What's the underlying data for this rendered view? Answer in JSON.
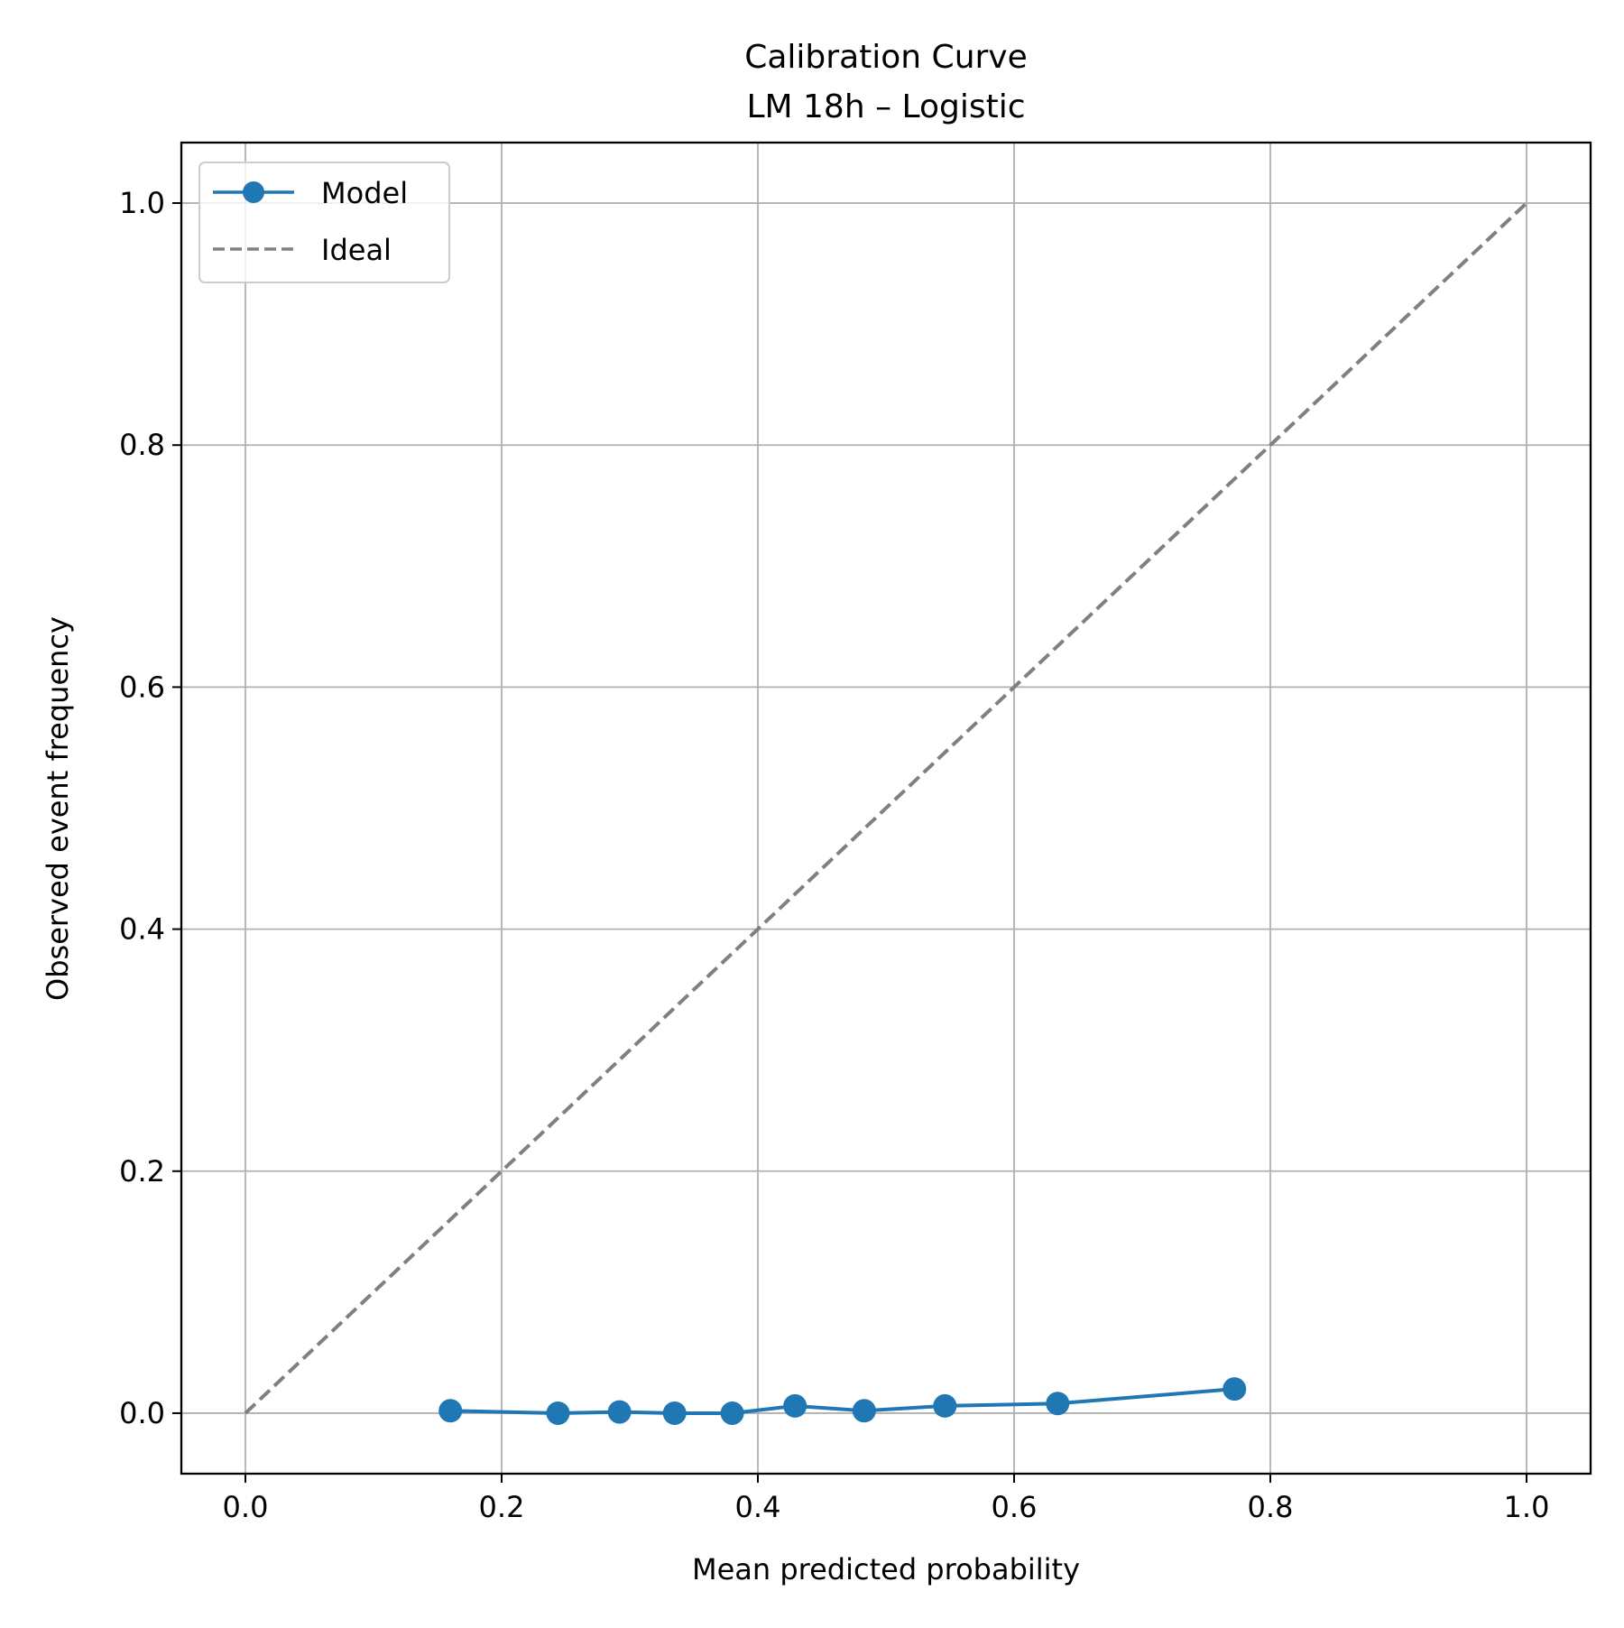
{
  "chart_data": {
    "type": "line",
    "title": "Calibration Curve",
    "subtitle": "LM 18h – Logistic",
    "xlabel": "Mean predicted probability",
    "ylabel": "Observed event frequency",
    "xlim": [
      -0.05,
      1.05
    ],
    "ylim": [
      -0.05,
      1.05
    ],
    "xticks": [
      0.0,
      0.2,
      0.4,
      0.6,
      0.8,
      1.0
    ],
    "xtick_labels": [
      "0.0",
      "0.2",
      "0.4",
      "0.6",
      "0.8",
      "1.0"
    ],
    "yticks": [
      0.0,
      0.2,
      0.4,
      0.6,
      0.8,
      1.0
    ],
    "ytick_labels": [
      "0.0",
      "0.2",
      "0.4",
      "0.6",
      "0.8",
      "1.0"
    ],
    "grid": true,
    "legend_position": "top-left",
    "series": [
      {
        "name": "Model",
        "style": "solid-markers",
        "color": "#1f77b4",
        "x": [
          0.16,
          0.244,
          0.292,
          0.335,
          0.38,
          0.429,
          0.483,
          0.546,
          0.634,
          0.772
        ],
        "y": [
          0.002,
          0.0,
          0.001,
          0.0,
          0.0,
          0.006,
          0.002,
          0.006,
          0.008,
          0.02
        ]
      },
      {
        "name": "Ideal",
        "style": "dashed",
        "color": "#808080",
        "x": [
          0.0,
          1.0
        ],
        "y": [
          0.0,
          1.0
        ]
      }
    ]
  }
}
